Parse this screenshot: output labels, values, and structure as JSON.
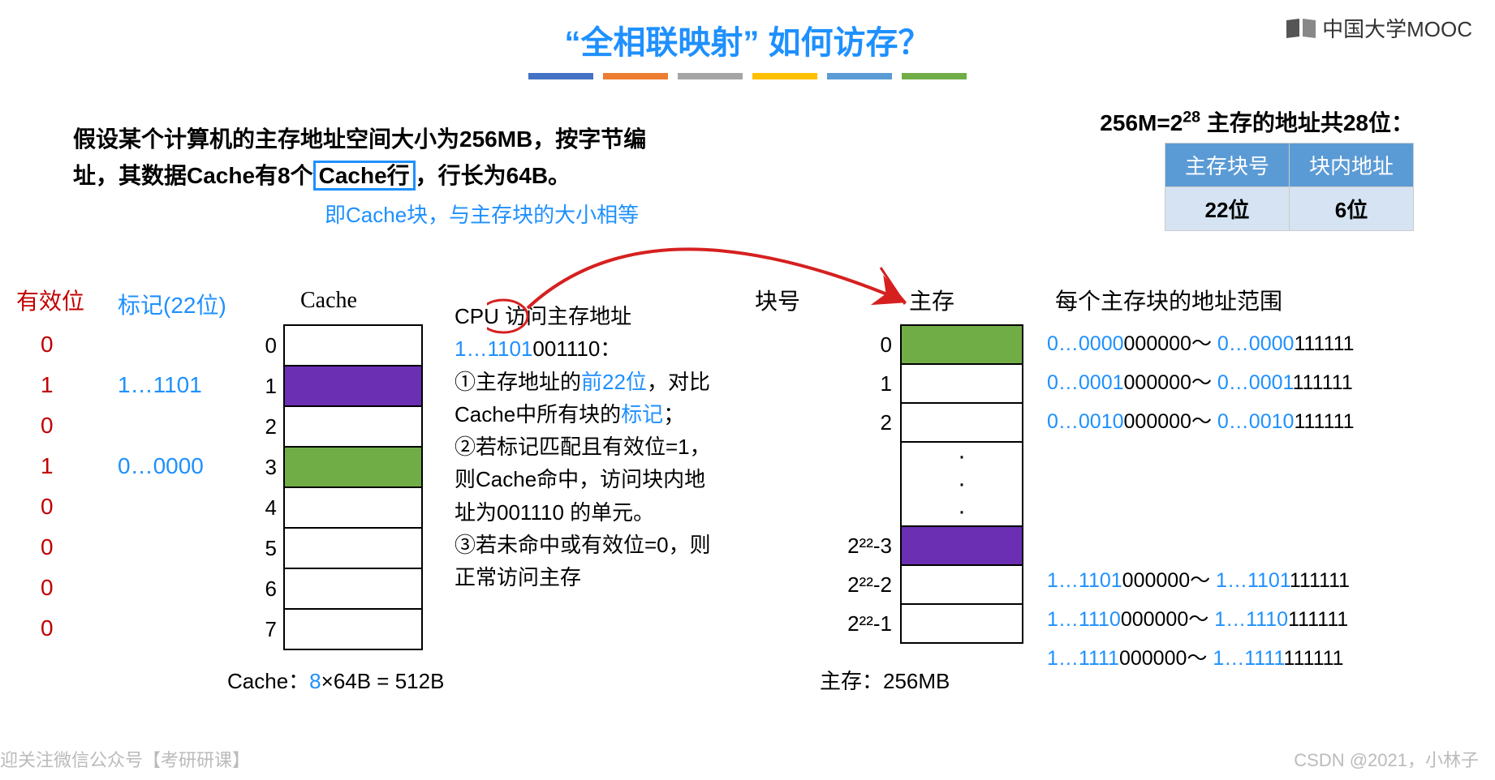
{
  "title_quoted": "“全相联映射”",
  "title_rest": " 如何访存？",
  "title_color": "#1e90ff",
  "bars": [
    "#4472c4",
    "#ed7d31",
    "#a5a5a5",
    "#ffc000",
    "#5b9bd5",
    "#70ad47"
  ],
  "watermark": "中国大学MOOC",
  "problem_l1": "假设某个计算机的主存地址空间大小为256MB，按字节编",
  "problem_l2_a": "址，其数据Cache有8个",
  "problem_l2_box": "Cache行",
  "problem_l2_b": "，行长为64B。",
  "note1": "即Cache块，与主存块的大小相等",
  "addr_note_a": "256M=2",
  "addr_note_sup": "28",
  "addr_note_b": " 主存的地址共28位：",
  "addr_table": {
    "header_bg": "#5b9bd5",
    "row_bg": "#d6e3f2",
    "h1": "主存块号",
    "h2": "块内地址",
    "c1": "22位",
    "c2": "6位"
  },
  "labels": {
    "valid": "有效位",
    "tag": "标记(22位)",
    "cache": "Cache",
    "blockno": "块号",
    "mainmem": "主存",
    "range": "每个主存块的地址范围"
  },
  "cache": {
    "rows": [
      {
        "valid": "0",
        "tag": "",
        "idx": "0",
        "bg": "#ffffff"
      },
      {
        "valid": "1",
        "tag": "1…1101",
        "idx": "1",
        "bg": "#6b2fb3"
      },
      {
        "valid": "0",
        "tag": "",
        "idx": "2",
        "bg": "#ffffff"
      },
      {
        "valid": "1",
        "tag": "0…0000",
        "idx": "3",
        "bg": "#70ad47"
      },
      {
        "valid": "0",
        "tag": "",
        "idx": "4",
        "bg": "#ffffff"
      },
      {
        "valid": "0",
        "tag": "",
        "idx": "5",
        "bg": "#ffffff"
      },
      {
        "valid": "0",
        "tag": "",
        "idx": "6",
        "bg": "#ffffff"
      },
      {
        "valid": "0",
        "tag": "",
        "idx": "7",
        "bg": "#ffffff"
      }
    ],
    "caption_a": "Cache：",
    "caption_b": "8",
    "caption_c": "×64B = 512B"
  },
  "cpu": {
    "l1": "CPU 访问主存地址",
    "addr_blue": "1…1101",
    "addr_black": "001110：",
    "p1a": "①主存地址的",
    "p1b": "前22位",
    "p1c": "，对比Cache中所有块的",
    "p1d": "标记",
    "p1e": "；",
    "p2": "②若标记匹配且有效位=1，则Cache命中，访问块内地址为001110 的单元。",
    "p3": "③若未命中或有效位=0，则正常访问主存"
  },
  "memory": {
    "rows_top": [
      {
        "idx": "0",
        "bg": "#70ad47"
      },
      {
        "idx": "1",
        "bg": "#ffffff"
      },
      {
        "idx": "2",
        "bg": "#ffffff"
      }
    ],
    "rows_bot": [
      {
        "idx": "2^22-3",
        "disp": "2²²-3",
        "bg": "#6b2fb3"
      },
      {
        "idx": "2^22-2",
        "disp": "2²²-2",
        "bg": "#ffffff"
      },
      {
        "idx": "2^22-1",
        "disp": "2²²-1",
        "bg": "#ffffff"
      }
    ],
    "caption": "主存：256MB"
  },
  "ranges_top": [
    {
      "a": "0…0000",
      "b": "000000",
      "c": "0…0000",
      "d": "111111"
    },
    {
      "a": "0…0001",
      "b": "000000",
      "c": "0…0001",
      "d": "111111"
    },
    {
      "a": "0…0010",
      "b": "000000",
      "c": "0…0010",
      "d": "111111"
    }
  ],
  "ranges_bot": [
    {
      "a": "1…1101",
      "b": "000000",
      "c": "1…1101",
      "d": "111111"
    },
    {
      "a": "1…1110",
      "b": "000000",
      "c": "1…1110",
      "d": "111111"
    },
    {
      "a": "1…1111",
      "b": "000000",
      "c": "1…1111",
      "d": "111111"
    }
  ],
  "footer_left": "迎关注微信公众号【考研研课】",
  "footer_right": "CSDN @2021，小林子",
  "colors": {
    "blue": "#1e90ff",
    "red": "#c00000",
    "purple": "#6b2fb3",
    "green": "#70ad47",
    "arrow": "#d62020"
  }
}
